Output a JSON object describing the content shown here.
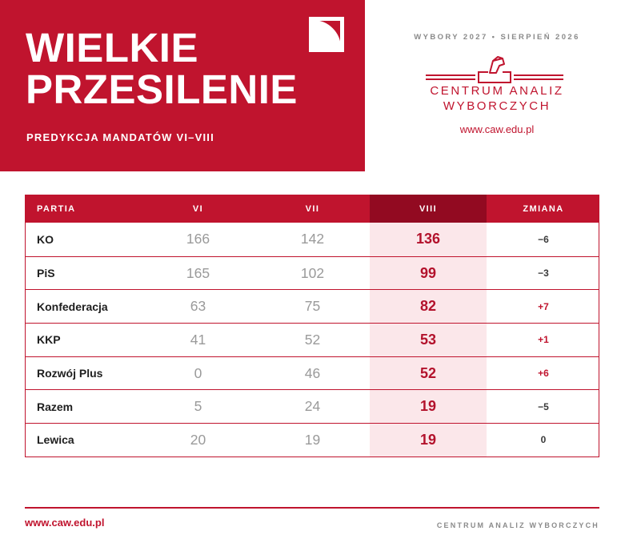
{
  "header": {
    "title": "WIELKIE\nPRZESILENIE",
    "subtitle": "PREDYKCJA MANDATÓW VI–VIII",
    "kicker": "WYBORY 2027 • SIERPIEŃ 2026",
    "org_name": "CENTRUM ANALIZ\nWYBORCZYCH",
    "org_url": "www.caw.edu.pl",
    "corner_icon": "quarter-circle-square-icon",
    "org_logo_icon": "ballot-box-hand-icon"
  },
  "colors": {
    "brand_red": "#c0142e",
    "highlight_header": "#920a21",
    "highlight_cell": "#fbe7ea",
    "muted_text": "#9a9a9a"
  },
  "table": {
    "columns": [
      "PARTIA",
      "VI",
      "VII",
      "VIII",
      "ZMIANA"
    ],
    "highlight_column": "VIII",
    "rows": [
      {
        "party": "KO",
        "vi": "166",
        "vii": "142",
        "viii": "136",
        "change": "−6",
        "positive": false
      },
      {
        "party": "PiS",
        "vi": "165",
        "vii": "102",
        "viii": "99",
        "change": "−3",
        "positive": false
      },
      {
        "party": "Konfederacja",
        "vi": "63",
        "vii": "75",
        "viii": "82",
        "change": "+7",
        "positive": true
      },
      {
        "party": "KKP",
        "vi": "41",
        "vii": "52",
        "viii": "53",
        "change": "+1",
        "positive": true
      },
      {
        "party": "Rozwój Plus",
        "vi": "0",
        "vii": "46",
        "viii": "52",
        "change": "+6",
        "positive": true
      },
      {
        "party": "Razem",
        "vi": "5",
        "vii": "24",
        "viii": "19",
        "change": "−5",
        "positive": false
      },
      {
        "party": "Lewica",
        "vi": "20",
        "vii": "19",
        "viii": "19",
        "change": "0",
        "positive": false
      }
    ]
  },
  "footer": {
    "url": "www.caw.edu.pl",
    "org": "CENTRUM ANALIZ WYBORCZYCH"
  }
}
